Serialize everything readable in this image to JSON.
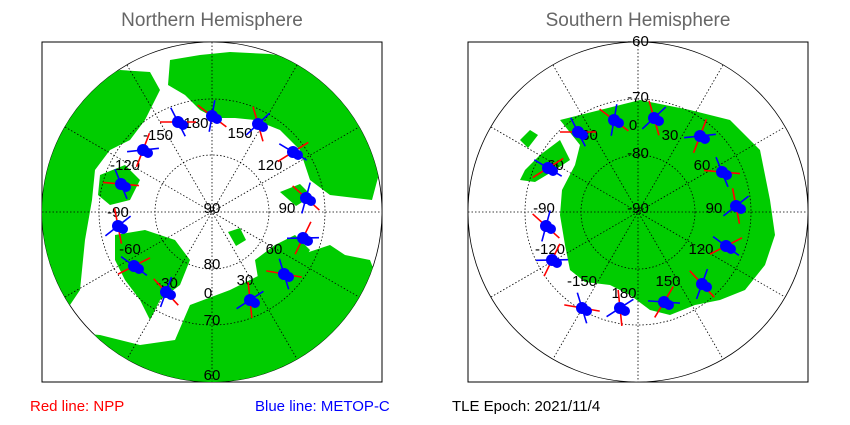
{
  "titles": {
    "north": "Northern Hemisphere",
    "south": "Southern Hemisphere"
  },
  "legend": {
    "red_line": "Red line: NPP",
    "blue_line": "Blue line: METOP-C",
    "tle_epoch": "TLE Epoch: 2021/11/4"
  },
  "colors": {
    "land": "#00cc00",
    "ocean": "#ffffff",
    "npp": "#ff0000",
    "metop": "#0000ff",
    "grid": "#000000",
    "title": "#666666"
  },
  "north_labels": {
    "lon_m150": "-150",
    "lon_180": "180",
    "lon_150": "150",
    "lon_m120": "-120",
    "lon_120": "120",
    "lon_m90": "-90",
    "lon_90": "90",
    "lon_m60": "-60",
    "lon_60": "60",
    "lon_m30": "-30",
    "lon_30": "30",
    "lon_0": "0",
    "lat_90": "90",
    "lat_80": "80",
    "lat_70": "70",
    "lat_60": "60"
  },
  "south_labels": {
    "lat_m60": "-60",
    "lat_m70": "-70",
    "lat_m80": "-80",
    "lat_m90": "-90",
    "lon_m30": "-30",
    "lon_0": "0",
    "lon_30": "30",
    "lon_m60": "-60",
    "lon_60": "60",
    "lon_m90": "-90",
    "lon_90": "90",
    "lon_m120": "-120",
    "lon_120": "120",
    "lon_m150": "-150",
    "lon_150": "150",
    "lon_180": "180"
  }
}
